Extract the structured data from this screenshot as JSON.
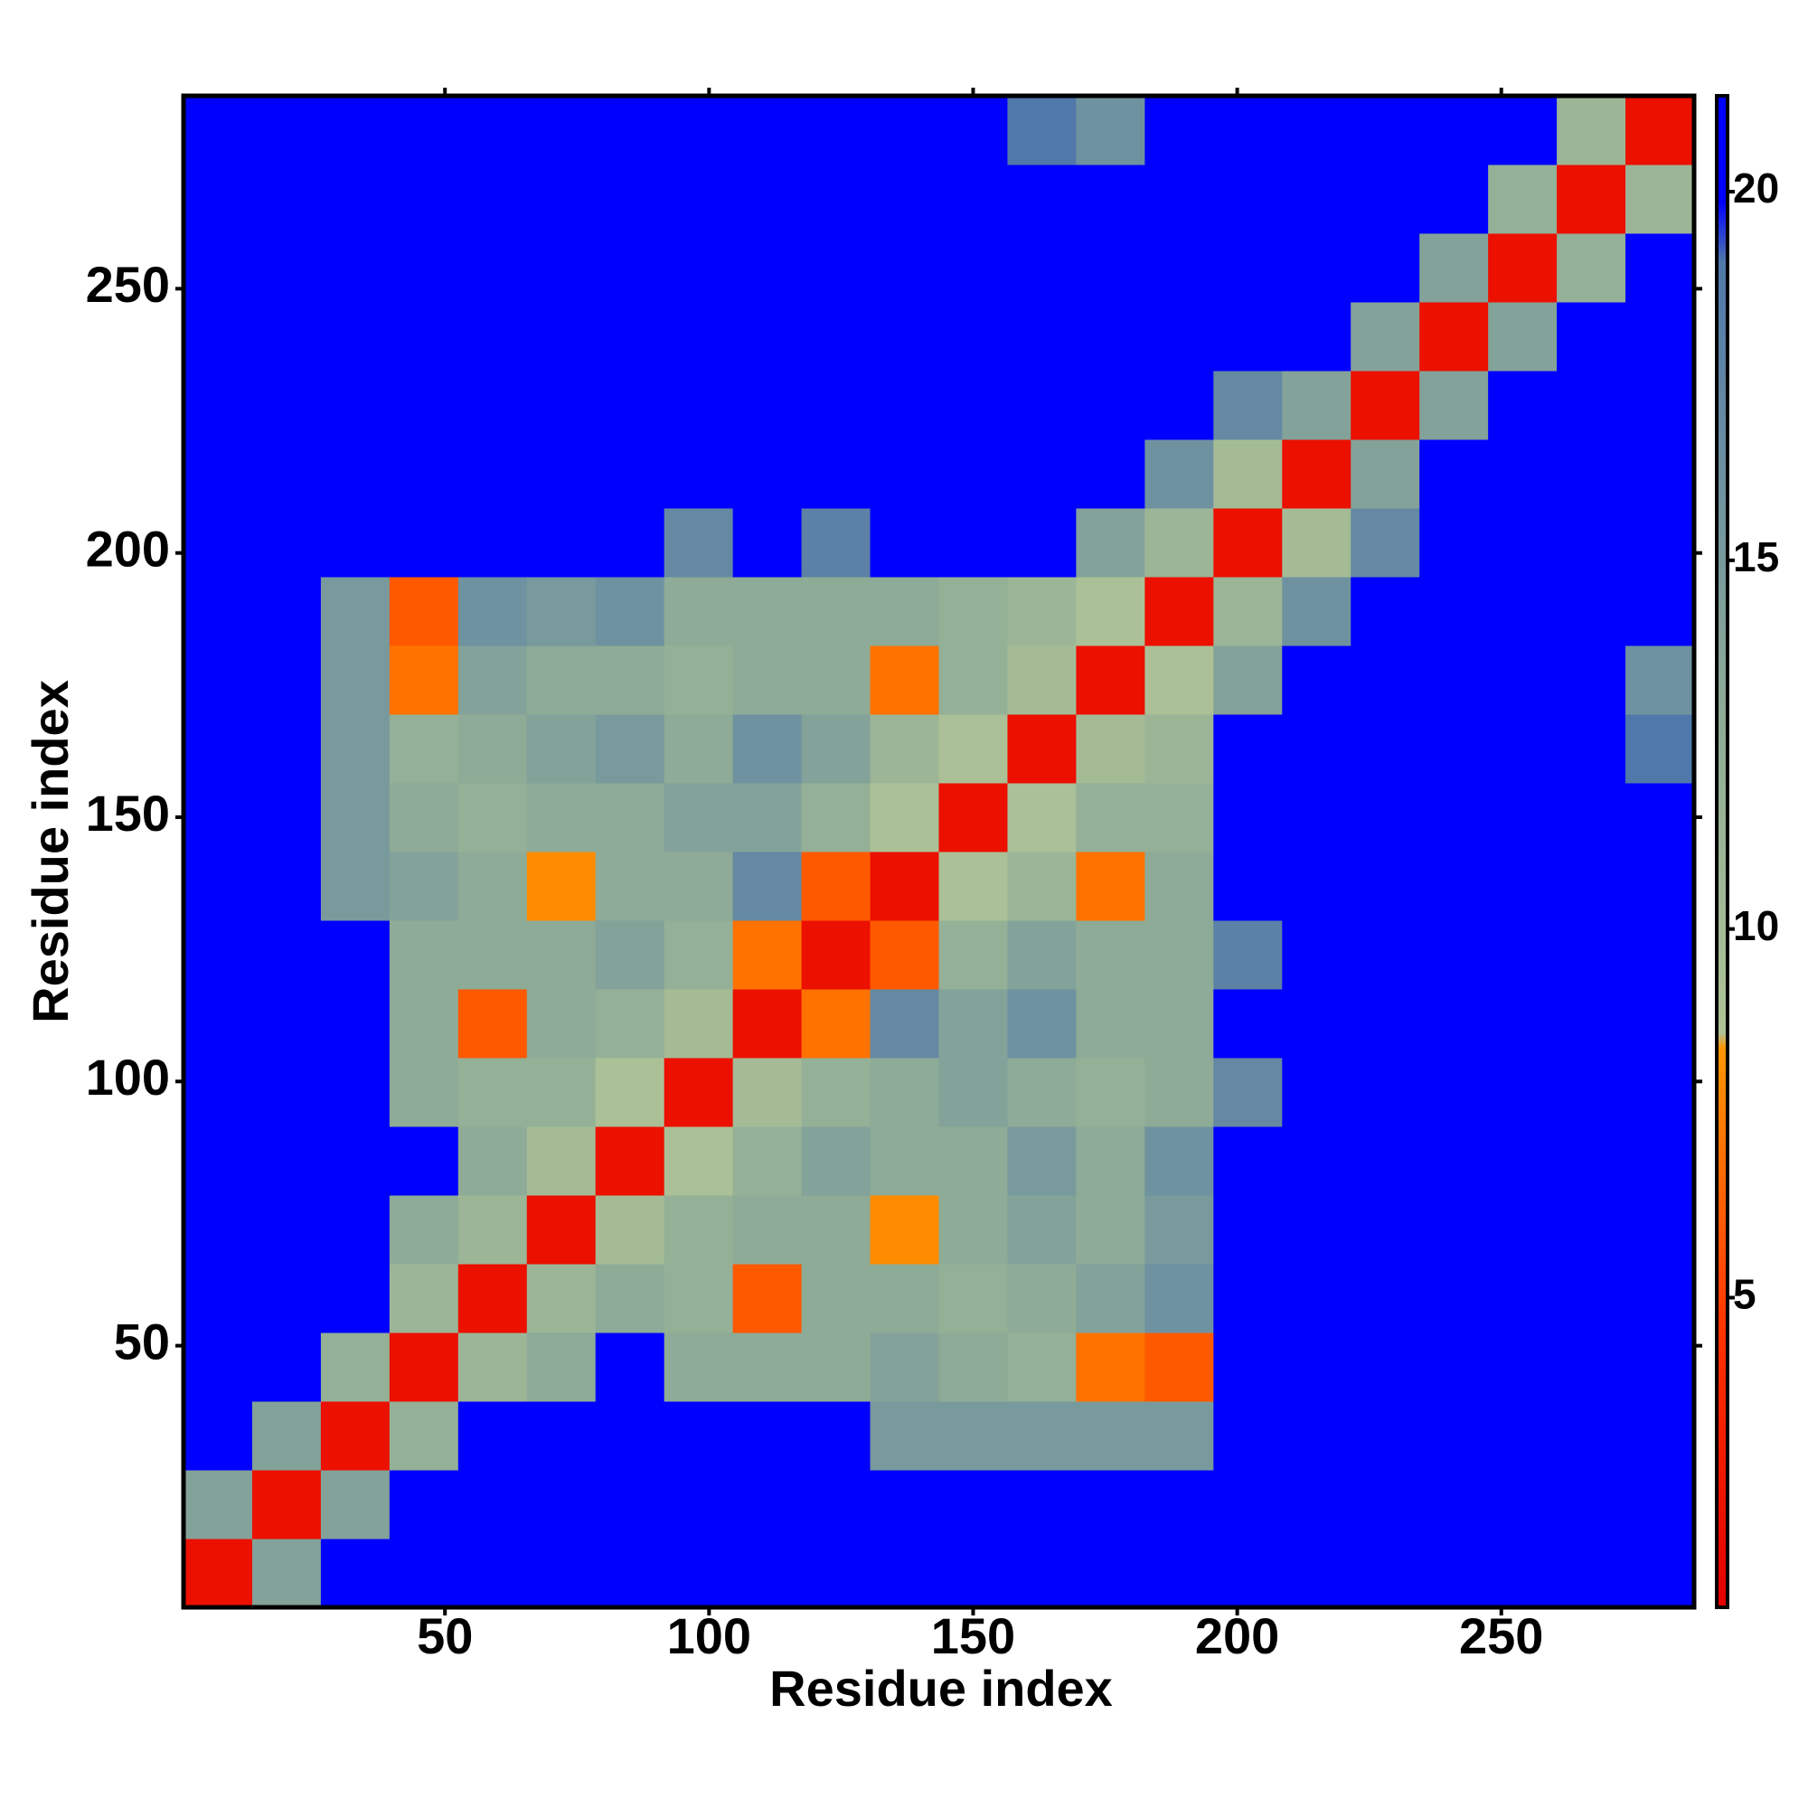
{
  "chart_data": {
    "type": "heatmap",
    "xlabel": "Residue index",
    "ylabel": "Residue index",
    "xlim": [
      0.5,
      286.5
    ],
    "ylim": [
      0.5,
      286.5
    ],
    "xticks": [
      50,
      100,
      150,
      200,
      250
    ],
    "yticks": [
      50,
      100,
      150,
      200,
      250
    ],
    "zlim": [
      0.8,
      21.3
    ],
    "zticks": [
      5,
      10,
      15,
      20
    ],
    "xbins": [
      0.5,
      13.5,
      26.5,
      39.5,
      52.5,
      65.5,
      78.5,
      91.5,
      104.5,
      117.5,
      130.5,
      143.5,
      156.5,
      169.5,
      182.5,
      195.5,
      208.5,
      221.5,
      234.5,
      247.5,
      260.5,
      273.5,
      286.5
    ],
    "ybins": [
      0.5,
      13.5,
      26.5,
      39.5,
      52.5,
      65.5,
      78.5,
      91.5,
      104.5,
      117.5,
      130.5,
      143.5,
      156.5,
      169.5,
      182.5,
      195.5,
      208.5,
      221.5,
      234.5,
      247.5,
      260.5,
      273.5,
      286.5
    ],
    "values": [
      [
        2,
        14,
        21,
        21,
        21,
        21,
        21,
        21,
        21,
        21,
        21,
        21,
        21,
        21,
        21,
        21,
        21,
        21,
        21,
        21,
        21,
        21
      ],
      [
        14,
        2,
        14,
        21,
        21,
        21,
        21,
        21,
        21,
        21,
        21,
        21,
        21,
        21,
        21,
        21,
        21,
        21,
        21,
        21,
        21,
        21
      ],
      [
        21,
        14,
        2,
        12,
        21,
        21,
        21,
        21,
        21,
        21,
        15,
        15,
        15,
        15,
        15,
        21,
        21,
        21,
        21,
        21,
        21,
        21
      ],
      [
        21,
        21,
        12,
        2,
        11,
        13,
        21,
        13,
        13,
        13,
        14,
        13,
        12,
        7,
        6,
        21,
        21,
        21,
        21,
        21,
        21,
        21
      ],
      [
        21,
        21,
        21,
        11,
        2,
        11,
        13,
        12,
        6,
        13,
        13,
        12,
        13,
        14,
        16,
        21,
        21,
        21,
        21,
        21,
        21,
        21
      ],
      [
        21,
        21,
        21,
        13,
        11,
        2,
        10,
        12,
        13,
        13,
        8,
        13,
        14,
        13,
        15,
        21,
        21,
        21,
        21,
        21,
        21,
        21
      ],
      [
        21,
        21,
        21,
        21,
        13,
        10,
        2,
        9,
        12,
        14,
        13,
        13,
        15,
        13,
        16,
        21,
        21,
        21,
        21,
        21,
        21,
        21
      ],
      [
        21,
        21,
        21,
        13,
        12,
        12,
        9,
        2,
        10,
        12,
        13,
        14,
        13,
        12,
        13,
        17,
        21,
        21,
        21,
        21,
        21,
        21
      ],
      [
        21,
        21,
        21,
        13,
        6,
        13,
        12,
        10,
        2,
        7,
        17,
        14,
        16,
        13,
        13,
        21,
        21,
        21,
        21,
        21,
        21,
        21
      ],
      [
        21,
        21,
        21,
        13,
        13,
        13,
        14,
        12,
        7,
        2,
        6,
        12,
        14,
        13,
        13,
        18,
        21,
        21,
        21,
        21,
        21,
        21
      ],
      [
        21,
        21,
        15,
        14,
        13,
        8,
        13,
        13,
        17,
        6,
        2,
        9,
        11,
        7,
        13,
        21,
        21,
        21,
        21,
        21,
        21,
        21
      ],
      [
        21,
        21,
        15,
        13,
        12,
        13,
        13,
        14,
        14,
        12,
        9,
        2,
        9,
        12,
        12,
        21,
        21,
        21,
        21,
        21,
        21,
        21
      ],
      [
        21,
        21,
        15,
        12,
        13,
        14,
        15,
        13,
        16,
        14,
        11,
        9,
        2,
        10,
        11,
        21,
        21,
        21,
        21,
        21,
        21,
        19
      ],
      [
        21,
        21,
        15,
        7,
        14,
        13,
        13,
        12,
        13,
        13,
        7,
        12,
        10,
        2,
        9,
        14,
        21,
        21,
        21,
        21,
        21,
        16
      ],
      [
        21,
        21,
        15,
        6,
        16,
        15,
        16,
        13,
        13,
        13,
        13,
        12,
        11,
        9,
        2,
        11,
        16,
        21,
        21,
        21,
        21,
        21
      ],
      [
        21,
        21,
        21,
        21,
        21,
        21,
        21,
        17,
        21,
        18,
        21,
        21,
        21,
        14,
        11,
        2,
        10,
        17,
        21,
        21,
        21,
        21
      ],
      [
        21,
        21,
        21,
        21,
        21,
        21,
        21,
        21,
        21,
        21,
        21,
        21,
        21,
        21,
        16,
        10,
        2,
        14,
        21,
        21,
        21,
        21
      ],
      [
        21,
        21,
        21,
        21,
        21,
        21,
        21,
        21,
        21,
        21,
        21,
        21,
        21,
        21,
        21,
        17,
        14,
        2,
        14,
        21,
        21,
        21
      ],
      [
        21,
        21,
        21,
        21,
        21,
        21,
        21,
        21,
        21,
        21,
        21,
        21,
        21,
        21,
        21,
        21,
        21,
        14,
        2,
        14,
        21,
        21
      ],
      [
        21,
        21,
        21,
        21,
        21,
        21,
        21,
        21,
        21,
        21,
        21,
        21,
        21,
        21,
        21,
        21,
        21,
        21,
        14,
        2,
        12,
        21
      ],
      [
        21,
        21,
        21,
        21,
        21,
        21,
        21,
        21,
        21,
        21,
        21,
        21,
        21,
        21,
        21,
        21,
        21,
        21,
        21,
        12,
        2,
        11
      ],
      [
        21,
        21,
        21,
        21,
        21,
        21,
        21,
        21,
        21,
        21,
        21,
        21,
        19,
        16,
        21,
        21,
        21,
        21,
        21,
        21,
        11,
        2
      ]
    ]
  }
}
